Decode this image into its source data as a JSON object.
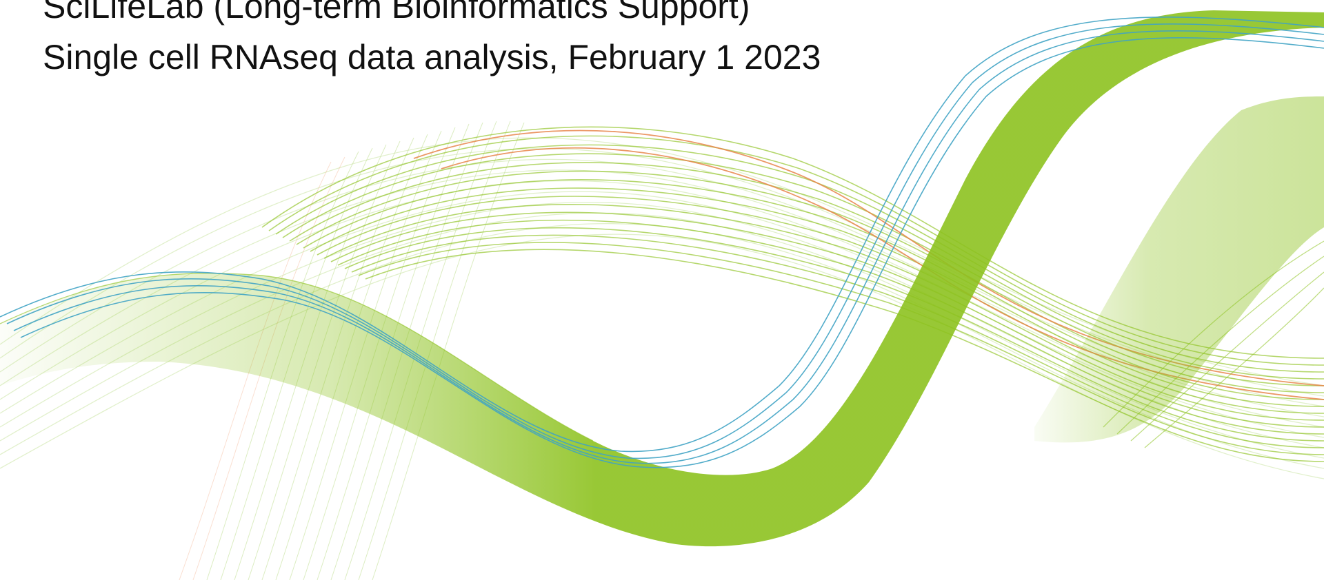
{
  "slide": {
    "lines": [
      "SciLifeLab (Long-term Bioinformatics Support)",
      "Single cell RNAseq data analysis, February 1 2023"
    ]
  },
  "colors": {
    "background": "#ffffff",
    "text": "#111111",
    "wave_green": "#8dc21f",
    "wave_blue": "#3fa3c4",
    "wave_orange": "#e8854a"
  },
  "decoration": {
    "name": "flowing-wave-ribbons"
  }
}
